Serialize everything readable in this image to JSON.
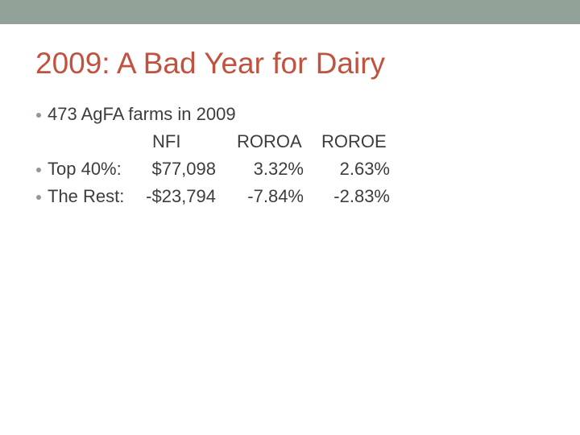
{
  "theme": {
    "top_bar_color": "#93A299",
    "title_color": "#C0523F",
    "body_text_color": "#3D3D3D",
    "bullet_color": "#8E9B94",
    "background_color": "#FFFFFF"
  },
  "slide": {
    "title": "2009: A Bad Year for Dairy",
    "intro_bullet": "473 AgFA farms in 2009",
    "table": {
      "headers": {
        "nfi": "NFI",
        "roroa": "ROROA",
        "roroe": "ROROE"
      },
      "rows": [
        {
          "label": "Top 40%:",
          "nfi": "$77,098",
          "roroa": "3.32%",
          "roroe": "2.63%"
        },
        {
          "label": "The Rest:",
          "nfi": "-$23,794",
          "roroa": "-7.84%",
          "roroe": "-2.83%"
        }
      ]
    }
  }
}
